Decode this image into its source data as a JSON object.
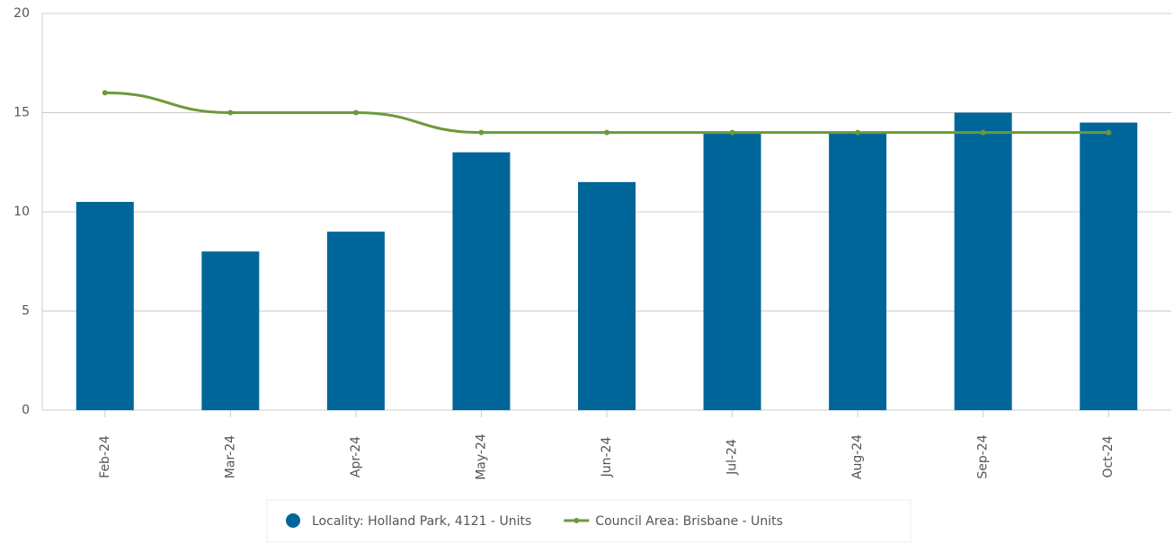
{
  "chart_data": {
    "type": "bar_line",
    "categories": [
      "Feb-24",
      "Mar-24",
      "Apr-24",
      "May-24",
      "Jun-24",
      "Jul-24",
      "Aug-24",
      "Sep-24",
      "Oct-24"
    ],
    "series": [
      {
        "name": "Locality: Holland Park, 4121 - Units",
        "type": "bar",
        "color": "#00669a",
        "values": [
          10.5,
          8,
          9,
          13,
          11.5,
          14,
          14,
          15,
          14.5
        ]
      },
      {
        "name": "Council Area: Brisbane - Units",
        "type": "line",
        "color": "#6a9a3a",
        "values": [
          16,
          15,
          15,
          14,
          14,
          14,
          14,
          14,
          14
        ]
      }
    ],
    "ylim": [
      0,
      20
    ],
    "yticks": [
      0,
      5,
      10,
      15,
      20
    ],
    "grid": true,
    "legend": "bottom"
  }
}
